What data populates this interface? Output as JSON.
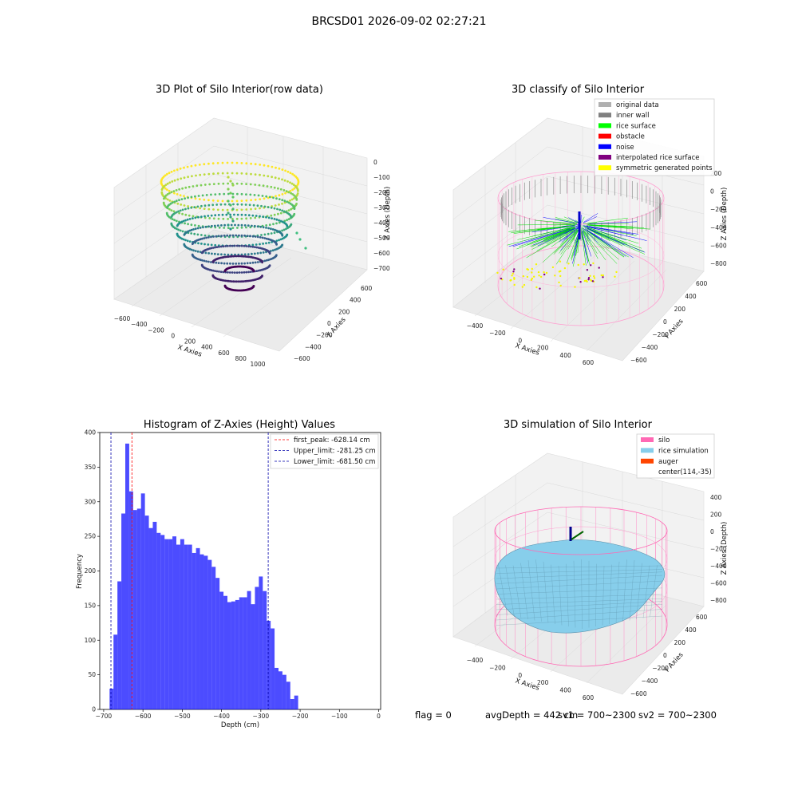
{
  "figure": {
    "suptitle": "BRCSD01 2026-09-02 02:27:21"
  },
  "chart_data": [
    {
      "type": "scatter",
      "title": "3D Plot of Silo Interior(row data)",
      "xlabel": "X Axies",
      "ylabel": "Y Axies",
      "zlabel": "Z Axies (Depth)",
      "x_ticks": [
        "−600",
        "−400",
        "−200",
        "0",
        "200",
        "400",
        "600",
        "800",
        "1000"
      ],
      "y_ticks": [
        "−600",
        "−400",
        "−200",
        "0",
        "200",
        "400",
        "600"
      ],
      "z_ticks": [
        "0",
        "−100",
        "−200",
        "−300",
        "−400",
        "−500",
        "−600",
        "−700"
      ],
      "colormap": "viridis"
    },
    {
      "type": "scatter",
      "title": "3D classify of Silo Interior",
      "xlabel": "X Axies",
      "ylabel": "Y Axies",
      "zlabel": "Z Axies (Depth)",
      "x_ticks": [
        "−400",
        "−200",
        "0",
        "200",
        "400",
        "600"
      ],
      "y_ticks": [
        "−600",
        "−400",
        "−200",
        "0",
        "200",
        "400",
        "600"
      ],
      "z_ticks": [
        "200",
        "0",
        "−200",
        "−400",
        "−600",
        "−800"
      ],
      "legend": [
        {
          "label": "original data",
          "color": "#b0b0b0"
        },
        {
          "label": "inner wall",
          "color": "#808080"
        },
        {
          "label": "rice surface",
          "color": "#00ff00"
        },
        {
          "label": "obstacle",
          "color": "#ff0000"
        },
        {
          "label": "noise",
          "color": "#0000ff"
        },
        {
          "label": "interpolated rice surface",
          "color": "#800080"
        },
        {
          "label": "symmetric generated points",
          "color": "#ffff00"
        }
      ]
    },
    {
      "type": "bar",
      "title": "Histogram of Z-Axies (Height) Values",
      "xlabel": "Depth (cm)",
      "ylabel": "Frequency",
      "xlim": [
        -710,
        5
      ],
      "ylim": [
        0,
        400
      ],
      "x_ticks": [
        -700,
        -600,
        -500,
        -400,
        -300,
        -200,
        -100,
        0
      ],
      "y_ticks": [
        0,
        50,
        100,
        150,
        200,
        250,
        300,
        350,
        400
      ],
      "bar_color": "#0000ff",
      "bin_start": -685,
      "bin_width": 10,
      "values": [
        30,
        108,
        185,
        283,
        384,
        315,
        288,
        290,
        312,
        280,
        262,
        271,
        255,
        252,
        246,
        246,
        250,
        238,
        246,
        238,
        238,
        226,
        233,
        224,
        222,
        216,
        206,
        190,
        170,
        164,
        155,
        156,
        158,
        162,
        162,
        171,
        152,
        177,
        192,
        171,
        128,
        117,
        60,
        55,
        50,
        40,
        15,
        20
      ],
      "lines": [
        {
          "label": "first_peak: -628.14 cm",
          "x": -628.14,
          "color": "#ff0000"
        },
        {
          "label": "Upper_limit: -281.25 cm",
          "x": -281.25,
          "color": "#0000aa"
        },
        {
          "label": "Lower_limit: -681.50 cm",
          "x": -681.5,
          "color": "#0000aa"
        }
      ]
    },
    {
      "type": "surface",
      "title": "3D simulation of Silo Interior",
      "xlabel": "X Axies",
      "ylabel": "Y Axies",
      "zlabel": "Z Axies (Depth)",
      "x_ticks": [
        "−400",
        "−200",
        "0",
        "200",
        "400",
        "600"
      ],
      "y_ticks": [
        "−600",
        "−400",
        "−200",
        "0",
        "200",
        "400",
        "600"
      ],
      "z_ticks": [
        "400",
        "200",
        "0",
        "−200",
        "−400",
        "−600",
        "−800"
      ],
      "legend": [
        {
          "label": "silo",
          "color": "#ff69b4"
        },
        {
          "label": "rice simulation",
          "color": "#87ceeb"
        },
        {
          "label": "auger",
          "color": "#ff4500"
        },
        {
          "label": "center(114,-35)",
          "color": ""
        }
      ]
    }
  ],
  "status": {
    "flag": "flag = 0",
    "avg_depth": "avgDepth = 442 cm",
    "sv1": "sv1 = 700~2300",
    "sv2": "sv2 = 700~2300"
  }
}
